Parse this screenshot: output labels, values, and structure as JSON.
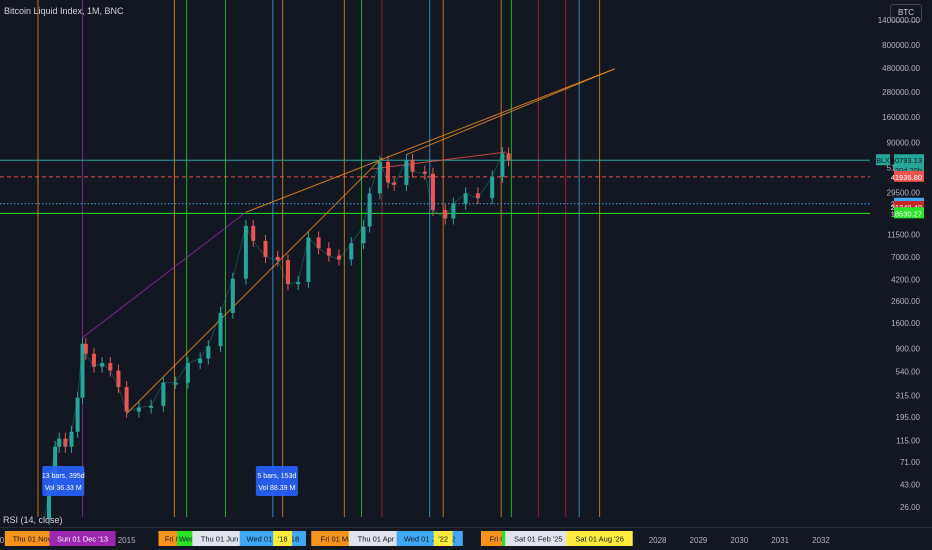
{
  "header": {
    "title": "Bitcoin Liquid Index, 1M, BNC",
    "symbol_button": "BTC"
  },
  "indicator": {
    "label": "RSI (14, close)"
  },
  "colors": {
    "background": "#131722",
    "up": "#26a69a",
    "down": "#ef5350",
    "orange": "#f7931a",
    "green": "#29e329",
    "blue": "#3fa9f5",
    "red": "#c62828",
    "purple": "#9c27b0",
    "yellow": "#ffeb3b"
  },
  "chart_data": {
    "type": "line",
    "title": "Bitcoin Liquid Index, 1M, BNC",
    "y_scale": "log",
    "x_unit": "year",
    "xlim": [
      2011.9,
      2033.2
    ],
    "ylim": [
      26,
      1400000
    ],
    "y_tick_labels": [
      "1400000.00",
      "800000.00",
      "480000.00",
      "280000.00",
      "160000.00",
      "90000.00",
      "51500.00",
      "29500.00",
      "11500.00",
      "7000.00",
      "4200.00",
      "2600.00",
      "1600.00",
      "900.00",
      "540.00",
      "315.00",
      "195.00",
      "115.00",
      "71.00",
      "43.00",
      "26.00"
    ],
    "x_tick_labels": [
      {
        "x": 2012,
        "label": "2012"
      },
      {
        "x": 2015,
        "label": "2015"
      },
      {
        "x": 2028,
        "label": "2028"
      },
      {
        "x": 2029,
        "label": "2029"
      },
      {
        "x": 2030,
        "label": "2030"
      },
      {
        "x": 2031,
        "label": "2031"
      },
      {
        "x": 2032,
        "label": "2032"
      }
    ],
    "price": [
      {
        "x": 2013.0,
        "y": 20
      },
      {
        "x": 2013.1,
        "y": 40
      },
      {
        "x": 2013.25,
        "y": 100
      },
      {
        "x": 2013.35,
        "y": 120
      },
      {
        "x": 2013.5,
        "y": 100
      },
      {
        "x": 2013.65,
        "y": 140
      },
      {
        "x": 2013.8,
        "y": 300
      },
      {
        "x": 2013.92,
        "y": 1000
      },
      {
        "x": 2014.0,
        "y": 800
      },
      {
        "x": 2014.2,
        "y": 600
      },
      {
        "x": 2014.4,
        "y": 650
      },
      {
        "x": 2014.6,
        "y": 550
      },
      {
        "x": 2014.8,
        "y": 380
      },
      {
        "x": 2015.0,
        "y": 220
      },
      {
        "x": 2015.3,
        "y": 240
      },
      {
        "x": 2015.6,
        "y": 250
      },
      {
        "x": 2015.9,
        "y": 420
      },
      {
        "x": 2016.2,
        "y": 420
      },
      {
        "x": 2016.5,
        "y": 650
      },
      {
        "x": 2016.8,
        "y": 720
      },
      {
        "x": 2017.0,
        "y": 950
      },
      {
        "x": 2017.3,
        "y": 2000
      },
      {
        "x": 2017.6,
        "y": 4300
      },
      {
        "x": 2017.92,
        "y": 14000
      },
      {
        "x": 2018.1,
        "y": 10000
      },
      {
        "x": 2018.4,
        "y": 7000
      },
      {
        "x": 2018.7,
        "y": 6500
      },
      {
        "x": 2018.95,
        "y": 3800
      },
      {
        "x": 2019.2,
        "y": 4000
      },
      {
        "x": 2019.45,
        "y": 10800
      },
      {
        "x": 2019.7,
        "y": 8500
      },
      {
        "x": 2019.95,
        "y": 7200
      },
      {
        "x": 2020.2,
        "y": 6600
      },
      {
        "x": 2020.5,
        "y": 9500
      },
      {
        "x": 2020.8,
        "y": 13800
      },
      {
        "x": 2020.95,
        "y": 29000
      },
      {
        "x": 2021.2,
        "y": 58800
      },
      {
        "x": 2021.4,
        "y": 37000
      },
      {
        "x": 2021.55,
        "y": 35000
      },
      {
        "x": 2021.85,
        "y": 61300
      },
      {
        "x": 2022.0,
        "y": 47000
      },
      {
        "x": 2022.3,
        "y": 45000
      },
      {
        "x": 2022.5,
        "y": 20000
      },
      {
        "x": 2022.8,
        "y": 16500
      },
      {
        "x": 2023.0,
        "y": 23000
      },
      {
        "x": 2023.3,
        "y": 29000
      },
      {
        "x": 2023.6,
        "y": 26000
      },
      {
        "x": 2023.95,
        "y": 42000
      },
      {
        "x": 2024.2,
        "y": 71000
      },
      {
        "x": 2024.35,
        "y": 60793.13
      }
    ],
    "current_price": {
      "y": 60793.13,
      "label": "BLX",
      "value_label": "60793.13",
      "countdown": "20d 20h"
    },
    "horizontal_levels": [
      {
        "y": 60793.13,
        "color": "#26a69a",
        "style": "solid"
      },
      {
        "y": 41936.8,
        "label": "41936.80",
        "color": "#ef5350",
        "style": "dashed"
      },
      {
        "y": 22967.53,
        "label": "22967.53",
        "color": "#3fa9f5",
        "style": "dotted"
      },
      {
        "y": 21349.4,
        "label": "21349.40",
        "color": "#c62828",
        "style": "none"
      },
      {
        "y": 18530.27,
        "label": "18530.27",
        "color": "#29e329",
        "style": "solid"
      }
    ],
    "vertical_lines": [
      {
        "x": 2012.83,
        "color": "#f7931a"
      },
      {
        "x": 2013.92,
        "color": "#9c27b0"
      },
      {
        "x": 2016.17,
        "color": "#f7931a"
      },
      {
        "x": 2016.47,
        "color": "#29e329"
      },
      {
        "x": 2017.42,
        "color": "#29e329"
      },
      {
        "x": 2018.58,
        "color": "#3fa9f5"
      },
      {
        "x": 2018.82,
        "color": "#f7931a"
      },
      {
        "x": 2020.33,
        "color": "#f7931a"
      },
      {
        "x": 2020.75,
        "color": "#29e329"
      },
      {
        "x": 2021.25,
        "color": "#c62828"
      },
      {
        "x": 2022.42,
        "color": "#3fa9f5"
      },
      {
        "x": 2022.75,
        "color": "#f7931a"
      },
      {
        "x": 2024.17,
        "color": "#f7931a"
      },
      {
        "x": 2024.42,
        "color": "#29e329"
      },
      {
        "x": 2025.08,
        "color": "#c62828"
      },
      {
        "x": 2025.75,
        "color": "#c62828"
      },
      {
        "x": 2026.08,
        "color": "#3fa9f5"
      },
      {
        "x": 2026.58,
        "color": "#f7931a"
      }
    ],
    "trendlines": [
      {
        "x1": 2013.92,
        "y1": 1150,
        "x2": 2017.92,
        "y2": 19000,
        "color": "#9c27b0"
      },
      {
        "x1": 2015.0,
        "y1": 210,
        "x2": 2021.25,
        "y2": 64000,
        "color": "#f7931a"
      },
      {
        "x1": 2017.92,
        "y1": 19000,
        "x2": 2026.95,
        "y2": 470000,
        "color": "#f7931a"
      },
      {
        "x1": 2021.85,
        "y1": 69000,
        "x2": 2026.95,
        "y2": 470000,
        "color": "#f7931a"
      },
      {
        "x1": 2021.0,
        "y1": 50000,
        "x2": 2024.3,
        "y2": 73000,
        "color": "#ef5350"
      }
    ],
    "measure_boxes": [
      {
        "x": 2013.35,
        "y": 52,
        "line1": "13 bars, 395d",
        "line2": "Vol 36.33 M"
      },
      {
        "x": 2018.58,
        "y": 52,
        "line1": "5 bars, 153d",
        "line2": "Vol 88.39 M"
      }
    ],
    "time_labels": [
      {
        "x": 2012.83,
        "label": "Thu 01 Nov '12",
        "bg": "#f7931a",
        "color": "#131722"
      },
      {
        "x": 2013.92,
        "label": "Sun 01 Dec '13",
        "bg": "#9c27b0",
        "color": "#ffffff"
      },
      {
        "x": 2016.17,
        "label": "Fri 01",
        "bg": "#f7931a",
        "color": "#131722"
      },
      {
        "x": 2016.47,
        "label": "Wed",
        "bg": "#29e329",
        "color": "#131722"
      },
      {
        "x": 2017.42,
        "label": "Thu 01 Jun '17",
        "bg": "#e0e3eb",
        "color": "#131722"
      },
      {
        "x": 2018.58,
        "label": "Wed 01 Aug '18",
        "bg": "#3fa9f5",
        "color": "#131722"
      },
      {
        "x": 2018.82,
        "label": "'18",
        "bg": "#ffeb3b",
        "color": "#131722"
      },
      {
        "x": 2020.33,
        "label": "Fri 01 May '20",
        "bg": "#f7931a",
        "color": "#131722"
      },
      {
        "x": 2021.25,
        "label": "Thu 01 Apr '21",
        "bg": "#e0e3eb",
        "color": "#131722"
      },
      {
        "x": 2022.42,
        "label": "Wed 01 Jun '22",
        "bg": "#3fa9f5",
        "color": "#131722"
      },
      {
        "x": 2022.75,
        "label": "'22",
        "bg": "#ffeb3b",
        "color": "#131722"
      },
      {
        "x": 2024.17,
        "label": "Fri 01 I",
        "bg": "#f7931a",
        "color": "#131722"
      },
      {
        "x": 2024.42,
        "label": "Tue",
        "bg": "#29e329",
        "color": "#131722"
      },
      {
        "x": 2025.08,
        "label": "Sat 01 Feb '25",
        "bg": "#e0e3eb",
        "color": "#131722"
      },
      {
        "x": 2026.08,
        "label": "Wed",
        "bg": "#3fa9f5",
        "color": "#131722"
      },
      {
        "x": 2026.58,
        "label": "Sat 01 Aug '26",
        "bg": "#ffeb3b",
        "color": "#131722"
      }
    ]
  }
}
